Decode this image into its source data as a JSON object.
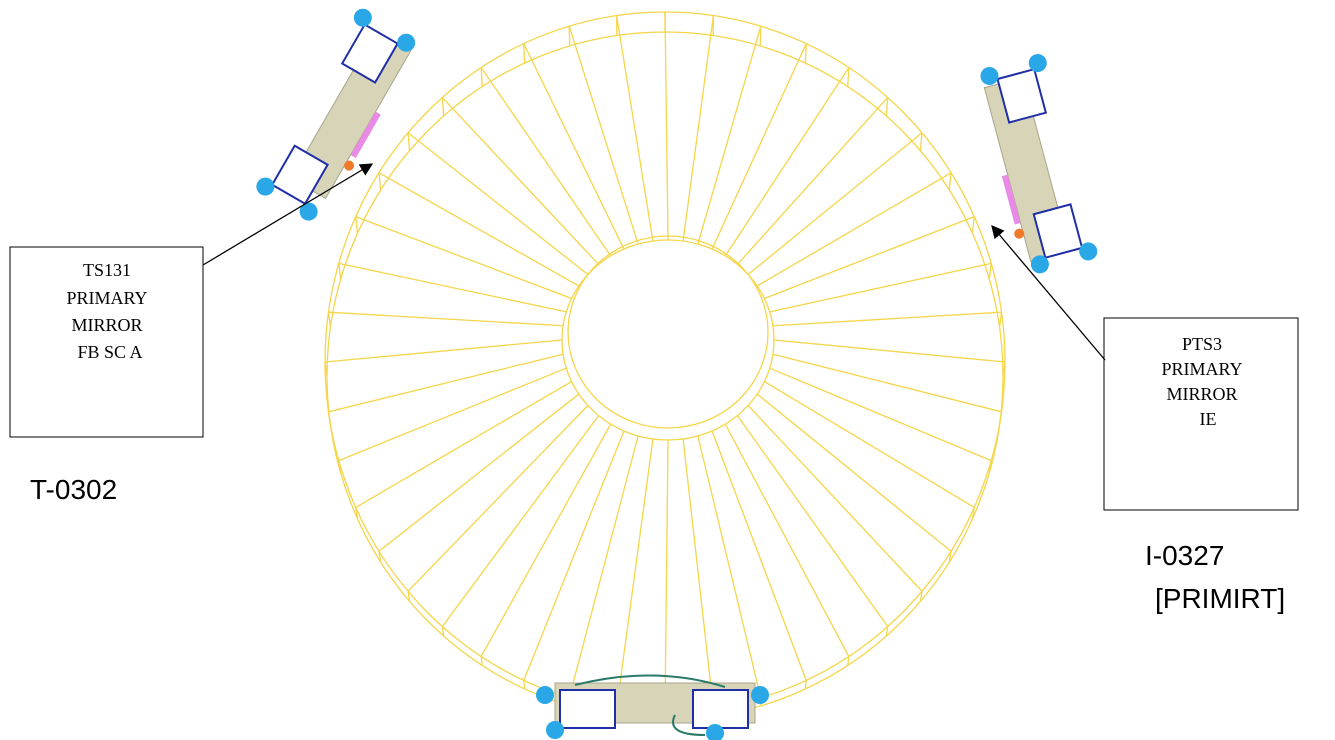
{
  "callouts": [
    {
      "lines": [
        "TS131",
        "PRIMARY",
        "MIRROR",
        "FB SC A"
      ],
      "tag": [
        "T-0302"
      ]
    },
    {
      "lines": [
        "PTS3",
        "PRIMARY",
        "MIRROR",
        "IE"
      ],
      "tag": [
        "I-0327",
        "[PRIMIRT]"
      ]
    }
  ]
}
